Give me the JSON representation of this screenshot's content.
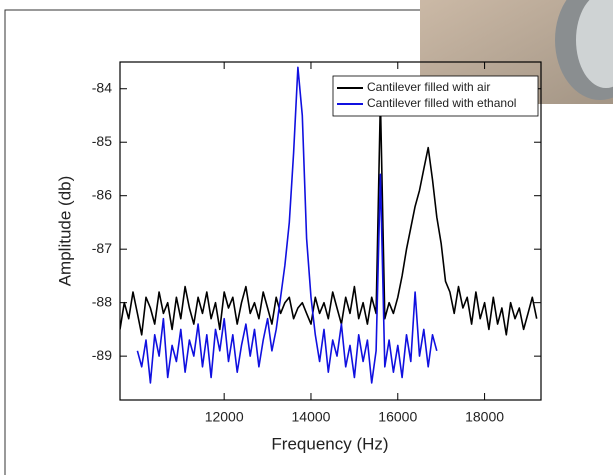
{
  "chart_data": {
    "type": "line",
    "x_label": "Frequency (Hz)",
    "y_label": "Amplitude (db)",
    "xlim": [
      9600,
      19300
    ],
    "ylim": [
      -89.82,
      -83.5
    ],
    "xticks": [
      12000,
      14000,
      16000,
      18000
    ],
    "yticks": [
      -89,
      -88,
      -87,
      -86,
      -85,
      -84
    ],
    "legend": "upper right",
    "x": [
      9600,
      9700,
      9800,
      9900,
      10000,
      10100,
      10200,
      10300,
      10400,
      10500,
      10600,
      10700,
      10800,
      10900,
      11000,
      11100,
      11200,
      11300,
      11400,
      11500,
      11600,
      11700,
      11800,
      11900,
      12000,
      12100,
      12200,
      12300,
      12400,
      12500,
      12600,
      12700,
      12800,
      12900,
      13000,
      13100,
      13200,
      13300,
      13400,
      13500,
      13600,
      13700,
      13800,
      13900,
      14000,
      14100,
      14200,
      14300,
      14400,
      14500,
      14600,
      14700,
      14800,
      14900,
      15000,
      15100,
      15200,
      15300,
      15400,
      15500,
      15600,
      15700,
      15800,
      15900,
      16000,
      16100,
      16200,
      16300,
      16400,
      16500,
      16600,
      16700,
      16800,
      16900,
      17000,
      17100,
      17200,
      17300,
      17400,
      17500,
      17600,
      17700,
      17800,
      17900,
      18000,
      18100,
      18200,
      18300,
      18400,
      18500,
      18600,
      18700,
      18800,
      18900,
      19000,
      19100,
      19200
    ],
    "series": [
      {
        "name": "Cantilever filled with air",
        "color": "#000000",
        "values": [
          -88.5,
          -88.0,
          -88.3,
          -87.8,
          -88.2,
          -88.6,
          -87.9,
          -88.1,
          -88.4,
          -87.8,
          -88.2,
          -88.0,
          -88.5,
          -87.9,
          -88.3,
          -87.7,
          -88.1,
          -88.4,
          -87.9,
          -88.2,
          -87.8,
          -88.3,
          -88.0,
          -88.5,
          -87.8,
          -88.1,
          -87.9,
          -88.4,
          -88.0,
          -87.7,
          -88.2,
          -88.0,
          -88.3,
          -87.8,
          -88.1,
          -88.4,
          -87.9,
          -88.2,
          -88.0,
          -87.9,
          -88.3,
          -88.1,
          -88.0,
          -88.2,
          -88.4,
          -87.9,
          -88.2,
          -88.0,
          -88.3,
          -87.8,
          -88.1,
          -88.4,
          -87.9,
          -88.2,
          -87.7,
          -88.3,
          -88.0,
          -88.4,
          -87.9,
          -88.2,
          -84.2,
          -88.3,
          -88.0,
          -88.2,
          -87.9,
          -87.5,
          -87.0,
          -86.6,
          -86.2,
          -85.9,
          -85.5,
          -85.1,
          -85.7,
          -86.4,
          -86.9,
          -87.6,
          -87.8,
          -88.2,
          -87.7,
          -88.1,
          -87.9,
          -88.4,
          -87.8,
          -88.3,
          -88.0,
          -88.5,
          -87.9,
          -88.4,
          -88.1,
          -88.6,
          -88.0,
          -88.3,
          -88.1,
          -88.5,
          -88.2,
          -87.9,
          -88.3
        ]
      },
      {
        "name": "Cantilever filled with ethanol",
        "color": "#1010e0",
        "values": [
          null,
          null,
          null,
          null,
          -88.9,
          -89.2,
          -88.7,
          -89.5,
          -88.6,
          -89.0,
          -88.3,
          -89.4,
          -88.8,
          -89.1,
          -88.5,
          -89.3,
          -88.7,
          -89.0,
          -88.4,
          -89.2,
          -88.6,
          -89.4,
          -88.5,
          -88.9,
          -88.3,
          -89.1,
          -88.6,
          -89.3,
          -88.8,
          -88.4,
          -89.0,
          -88.5,
          -89.2,
          -88.7,
          -88.3,
          -88.9,
          -88.5,
          -87.9,
          -87.3,
          -86.5,
          -85.2,
          -83.6,
          -84.5,
          -86.8,
          -87.9,
          -88.6,
          -89.1,
          -88.5,
          -89.3,
          -88.7,
          -89.0,
          -88.4,
          -89.2,
          -88.8,
          -89.4,
          -88.6,
          -89.1,
          -88.7,
          -89.5,
          -88.9,
          -85.6,
          -89.2,
          -88.7,
          -89.3,
          -88.8,
          -89.4,
          -88.6,
          -89.1,
          -87.8,
          -89.0,
          -88.5,
          -89.2,
          -88.6,
          -88.9,
          null,
          null,
          null,
          null,
          null,
          null,
          null,
          null,
          null,
          null,
          null,
          null,
          null,
          null,
          null,
          null,
          null,
          null,
          null,
          null,
          null,
          null,
          null
        ]
      }
    ]
  }
}
